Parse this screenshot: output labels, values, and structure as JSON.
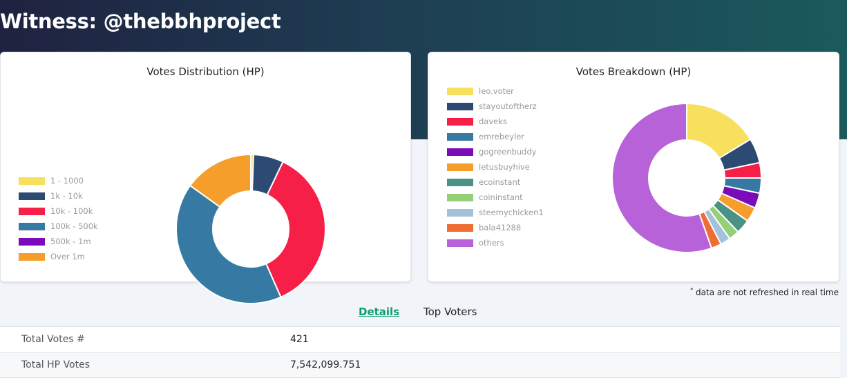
{
  "page": {
    "title": "Witness: @thebbhproject"
  },
  "distribution": {
    "title": "Votes Distribution (HP)",
    "legend": [
      {
        "label": "1 - 1000",
        "color": "#f6e05e"
      },
      {
        "label": "1k - 10k",
        "color": "#2c4a72"
      },
      {
        "label": "10k - 100k",
        "color": "#f51f47"
      },
      {
        "label": "100k - 500k",
        "color": "#367aa3"
      },
      {
        "label": "500k - 1m",
        "color": "#7b0ab8"
      },
      {
        "label": "Over 1m",
        "color": "#f59e2b"
      }
    ]
  },
  "breakdown": {
    "title": "Votes Breakdown (HP)",
    "legend": [
      {
        "label": "leo.voter",
        "color": "#f6e05e"
      },
      {
        "label": "stayoutoftherz",
        "color": "#2c4a72"
      },
      {
        "label": "daveks",
        "color": "#f51f47"
      },
      {
        "label": "emrebeyler",
        "color": "#367aa3"
      },
      {
        "label": "gogreenbuddy",
        "color": "#7b0ab8"
      },
      {
        "label": "letusbuyhive",
        "color": "#f59e2b"
      },
      {
        "label": "ecoinstant",
        "color": "#4a9285"
      },
      {
        "label": "coininstant",
        "color": "#95cf78"
      },
      {
        "label": "steemychicken1",
        "color": "#a3c1db"
      },
      {
        "label": "bala41288",
        "color": "#ee6d32"
      },
      {
        "label": "others",
        "color": "#b862d9"
      }
    ]
  },
  "chart_data": [
    {
      "type": "pie",
      "title": "Votes Distribution (HP)",
      "categories": [
        "1 - 1000",
        "1k - 10k",
        "10k - 100k",
        "100k - 500k",
        "500k - 1m",
        "Over 1m"
      ],
      "values": [
        0.6,
        6.5,
        36.3,
        41.5,
        0,
        15.1
      ],
      "legend_position": "left"
    },
    {
      "type": "pie",
      "title": "Votes Breakdown (HP)",
      "categories": [
        "leo.voter",
        "stayoutoftherz",
        "daveks",
        "emrebeyler",
        "gogreenbuddy",
        "letusbuyhive",
        "ecoinstant",
        "coininstant",
        "steemychicken1",
        "bala41288",
        "others"
      ],
      "values": [
        16.3,
        5.4,
        3.3,
        3.3,
        3.3,
        3.2,
        3.1,
        2.3,
        2.2,
        2.2,
        55.4
      ],
      "legend_position": "left"
    }
  ],
  "note": {
    "mark": "*",
    "text": "data are not refreshed in real time"
  },
  "tabs": {
    "details": "Details",
    "top_voters": "Top Voters"
  },
  "details": [
    {
      "label": "Total Votes #",
      "value": "421"
    },
    {
      "label": "Total HP Votes",
      "value": "7,542,099.751"
    }
  ]
}
